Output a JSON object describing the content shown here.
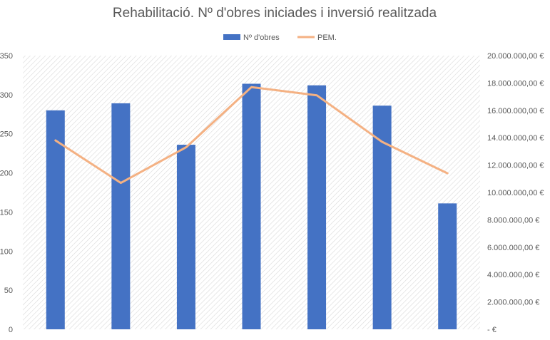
{
  "chart_data": {
    "type": "bar",
    "title": "Rehabilitació. Nº d'obres iniciades i inversió realitzada",
    "xlabel": "",
    "ylabel": "",
    "categories": [
      "",
      "",
      "",
      "",
      "",
      "",
      ""
    ],
    "series": [
      {
        "name": "Nº d'obres",
        "type": "bar",
        "axis": "left",
        "color": "#4472C4",
        "values": [
          280,
          289,
          236,
          314,
          312,
          286,
          161
        ]
      },
      {
        "name": "PEM.",
        "type": "line",
        "axis": "right",
        "color": "#F4B183",
        "values": [
          13800000,
          10700000,
          13300000,
          17700000,
          17100000,
          13700000,
          11400000
        ]
      }
    ],
    "ylim": [
      0,
      350
    ],
    "y_ticks": [
      "0",
      "50",
      "100",
      "150",
      "200",
      "250",
      "300",
      "350"
    ],
    "y2lim": [
      0,
      20000000
    ],
    "y2_ticks": [
      "-   €",
      "2.000.000,00 €",
      "4.000.000,00 €",
      "6.000.000,00 €",
      "8.000.000,00 €",
      "10.000.000,00 €",
      "12.000.000,00 €",
      "14.000.000,00 €",
      "16.000.000,00 €",
      "18.000.000,00 €",
      "20.000.000,00 €"
    ],
    "legend": "top",
    "grid": false,
    "plot_background": "diagonal-hatch"
  }
}
